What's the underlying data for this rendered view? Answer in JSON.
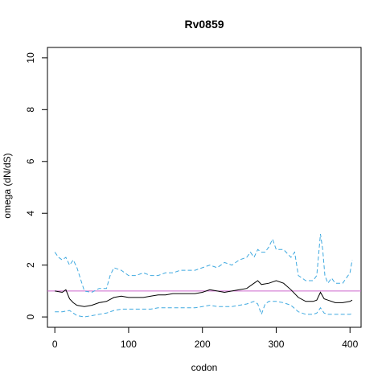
{
  "chart_data": {
    "type": "line",
    "title": "Rv0859",
    "xlabel": "codon",
    "ylabel": "omega (dN/dS)",
    "xlim": [
      -10,
      415
    ],
    "ylim": [
      -0.4,
      10.4
    ],
    "xticks": [
      0,
      100,
      200,
      300,
      400
    ],
    "yticks": [
      0,
      2,
      4,
      6,
      8,
      10
    ],
    "grid": false,
    "reference_line": {
      "y": 1,
      "color": "#cc66cc"
    },
    "colors": {
      "omega": "#000000",
      "bounds": "#3fa9e0"
    },
    "series": [
      {
        "style": "solid",
        "x": [
          0,
          10,
          15,
          20,
          25,
          30,
          40,
          50,
          60,
          70,
          80,
          90,
          100,
          110,
          120,
          130,
          140,
          150,
          160,
          170,
          180,
          190,
          200,
          210,
          220,
          230,
          240,
          250,
          260,
          270,
          275,
          280,
          290,
          300,
          310,
          320,
          330,
          340,
          350,
          355,
          360,
          365,
          370,
          380,
          390,
          400,
          403
        ],
        "y": [
          1.0,
          0.95,
          1.05,
          0.7,
          0.55,
          0.45,
          0.4,
          0.45,
          0.55,
          0.6,
          0.75,
          0.8,
          0.75,
          0.75,
          0.75,
          0.8,
          0.85,
          0.85,
          0.9,
          0.9,
          0.9,
          0.9,
          0.95,
          1.05,
          1.0,
          0.95,
          1.0,
          1.05,
          1.1,
          1.3,
          1.4,
          1.25,
          1.3,
          1.4,
          1.3,
          1.05,
          0.75,
          0.6,
          0.6,
          0.65,
          0.95,
          0.7,
          0.65,
          0.55,
          0.55,
          0.6,
          0.65
        ]
      },
      {
        "style": "dashed",
        "x": [
          0,
          5,
          10,
          15,
          20,
          25,
          30,
          40,
          50,
          60,
          70,
          75,
          80,
          90,
          100,
          110,
          120,
          130,
          140,
          150,
          160,
          170,
          180,
          190,
          200,
          210,
          220,
          230,
          240,
          250,
          260,
          265,
          270,
          275,
          280,
          285,
          290,
          295,
          300,
          310,
          320,
          325,
          330,
          340,
          350,
          355,
          360,
          363,
          366,
          370,
          375,
          380,
          390,
          400,
          403
        ],
        "y": [
          2.5,
          2.3,
          2.2,
          2.3,
          2.0,
          2.2,
          1.9,
          1.0,
          0.95,
          1.1,
          1.1,
          1.6,
          1.9,
          1.8,
          1.6,
          1.6,
          1.7,
          1.6,
          1.6,
          1.7,
          1.7,
          1.8,
          1.8,
          1.8,
          1.9,
          2.0,
          1.9,
          2.1,
          2.0,
          2.2,
          2.3,
          2.5,
          2.3,
          2.6,
          2.5,
          2.5,
          2.7,
          3.0,
          2.6,
          2.6,
          2.3,
          2.5,
          1.6,
          1.4,
          1.4,
          1.6,
          3.2,
          2.6,
          1.6,
          1.3,
          1.5,
          1.3,
          1.3,
          1.7,
          2.2
        ]
      },
      {
        "style": "dashed",
        "x": [
          0,
          10,
          20,
          25,
          30,
          40,
          50,
          60,
          70,
          80,
          90,
          100,
          110,
          120,
          130,
          140,
          150,
          160,
          170,
          180,
          190,
          200,
          210,
          220,
          230,
          240,
          250,
          260,
          270,
          275,
          280,
          285,
          290,
          300,
          310,
          320,
          330,
          340,
          350,
          355,
          360,
          365,
          370,
          380,
          390,
          400,
          403
        ],
        "y": [
          0.2,
          0.2,
          0.25,
          0.15,
          0.05,
          0.0,
          0.05,
          0.1,
          0.15,
          0.25,
          0.3,
          0.3,
          0.3,
          0.3,
          0.3,
          0.35,
          0.35,
          0.35,
          0.35,
          0.35,
          0.35,
          0.4,
          0.45,
          0.4,
          0.4,
          0.4,
          0.45,
          0.5,
          0.6,
          0.5,
          0.1,
          0.5,
          0.6,
          0.6,
          0.55,
          0.45,
          0.2,
          0.1,
          0.1,
          0.15,
          0.35,
          0.15,
          0.1,
          0.1,
          0.1,
          0.1,
          0.12
        ]
      }
    ]
  }
}
